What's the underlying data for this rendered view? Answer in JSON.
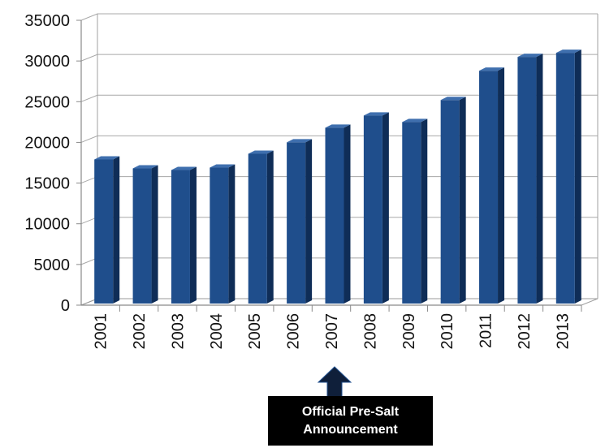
{
  "chart_data": {
    "type": "bar",
    "categories": [
      "2001",
      "2002",
      "2003",
      "2004",
      "2005",
      "2006",
      "2007",
      "2008",
      "2009",
      "2010",
      "2011",
      "2012",
      "2013"
    ],
    "values": [
      17700,
      16600,
      16400,
      16700,
      18400,
      19800,
      21600,
      23100,
      22300,
      25000,
      28600,
      30300,
      30800
    ],
    "ylim": [
      0,
      35000
    ],
    "yticks": [
      "0",
      "5000",
      "10000",
      "15000",
      "20000",
      "25000",
      "30000",
      "35000"
    ],
    "title": "",
    "xlabel": "",
    "ylabel": "",
    "grid": true,
    "bar_color": "#1f4e8c",
    "annotation": {
      "target_category": "2007",
      "line1": "Official Pre-Salt",
      "line2": "Announcement"
    }
  }
}
